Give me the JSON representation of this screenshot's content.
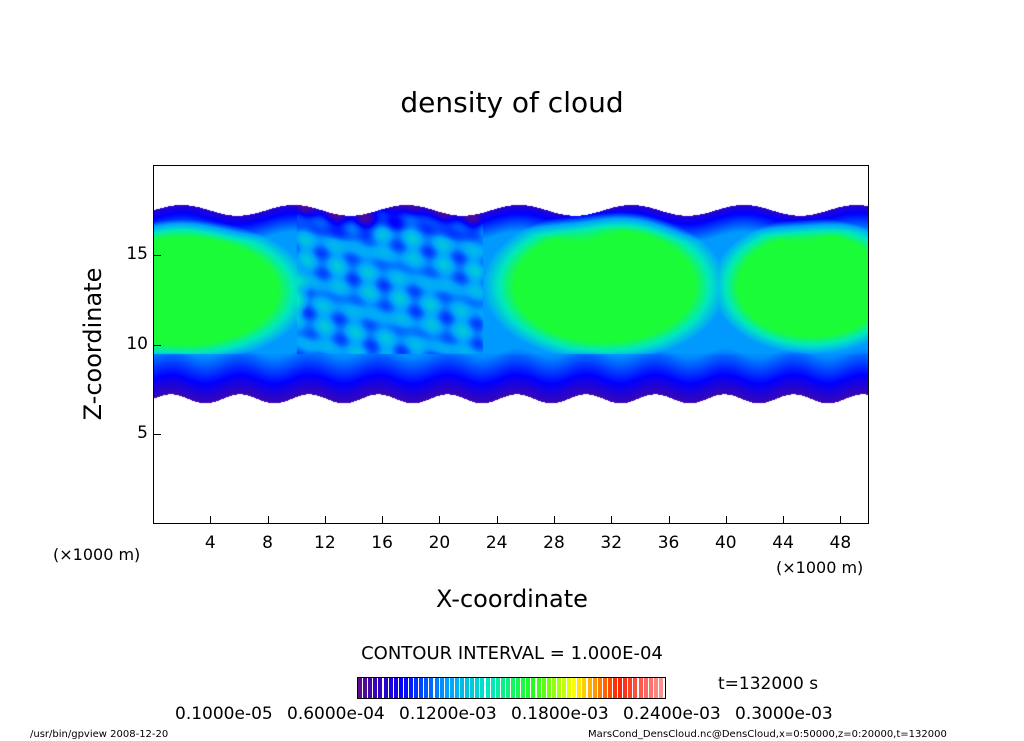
{
  "chart_data": {
    "type": "heatmap",
    "title": "density of cloud",
    "xlabel": "X-coordinate",
    "ylabel": "Z-coordinate",
    "x_unit": "(×1000 m)",
    "y_unit": "(×1000 m)",
    "xlim": [
      0,
      50
    ],
    "ylim": [
      0,
      20
    ],
    "xticks": [
      4,
      8,
      12,
      16,
      20,
      24,
      28,
      32,
      36,
      40,
      44,
      48
    ],
    "yticks": [
      5,
      10,
      15
    ],
    "contour_interval": "CONTOUR INTERVAL = 1.000E-04",
    "colorbar_labels": [
      "0.1000e-05",
      "0.6000e-04",
      "0.1200e-03",
      "0.1800e-03",
      "0.2400e-03",
      "0.3000e-03"
    ],
    "colorbar_range": [
      1e-06,
      0.0003
    ],
    "colormap": [
      "#5a0a8a",
      "#0000ff",
      "#00a0ff",
      "#00e8c0",
      "#20ff20",
      "#ffff00",
      "#ff2000",
      "#ff9090"
    ],
    "time_label": "t=132000 s"
  },
  "footer": {
    "left": "/usr/bin/gpview   2008-12-20",
    "right": "MarsCond_DensCloud.nc@DensCloud,x=0:50000,z=0:20000,t=132000"
  }
}
